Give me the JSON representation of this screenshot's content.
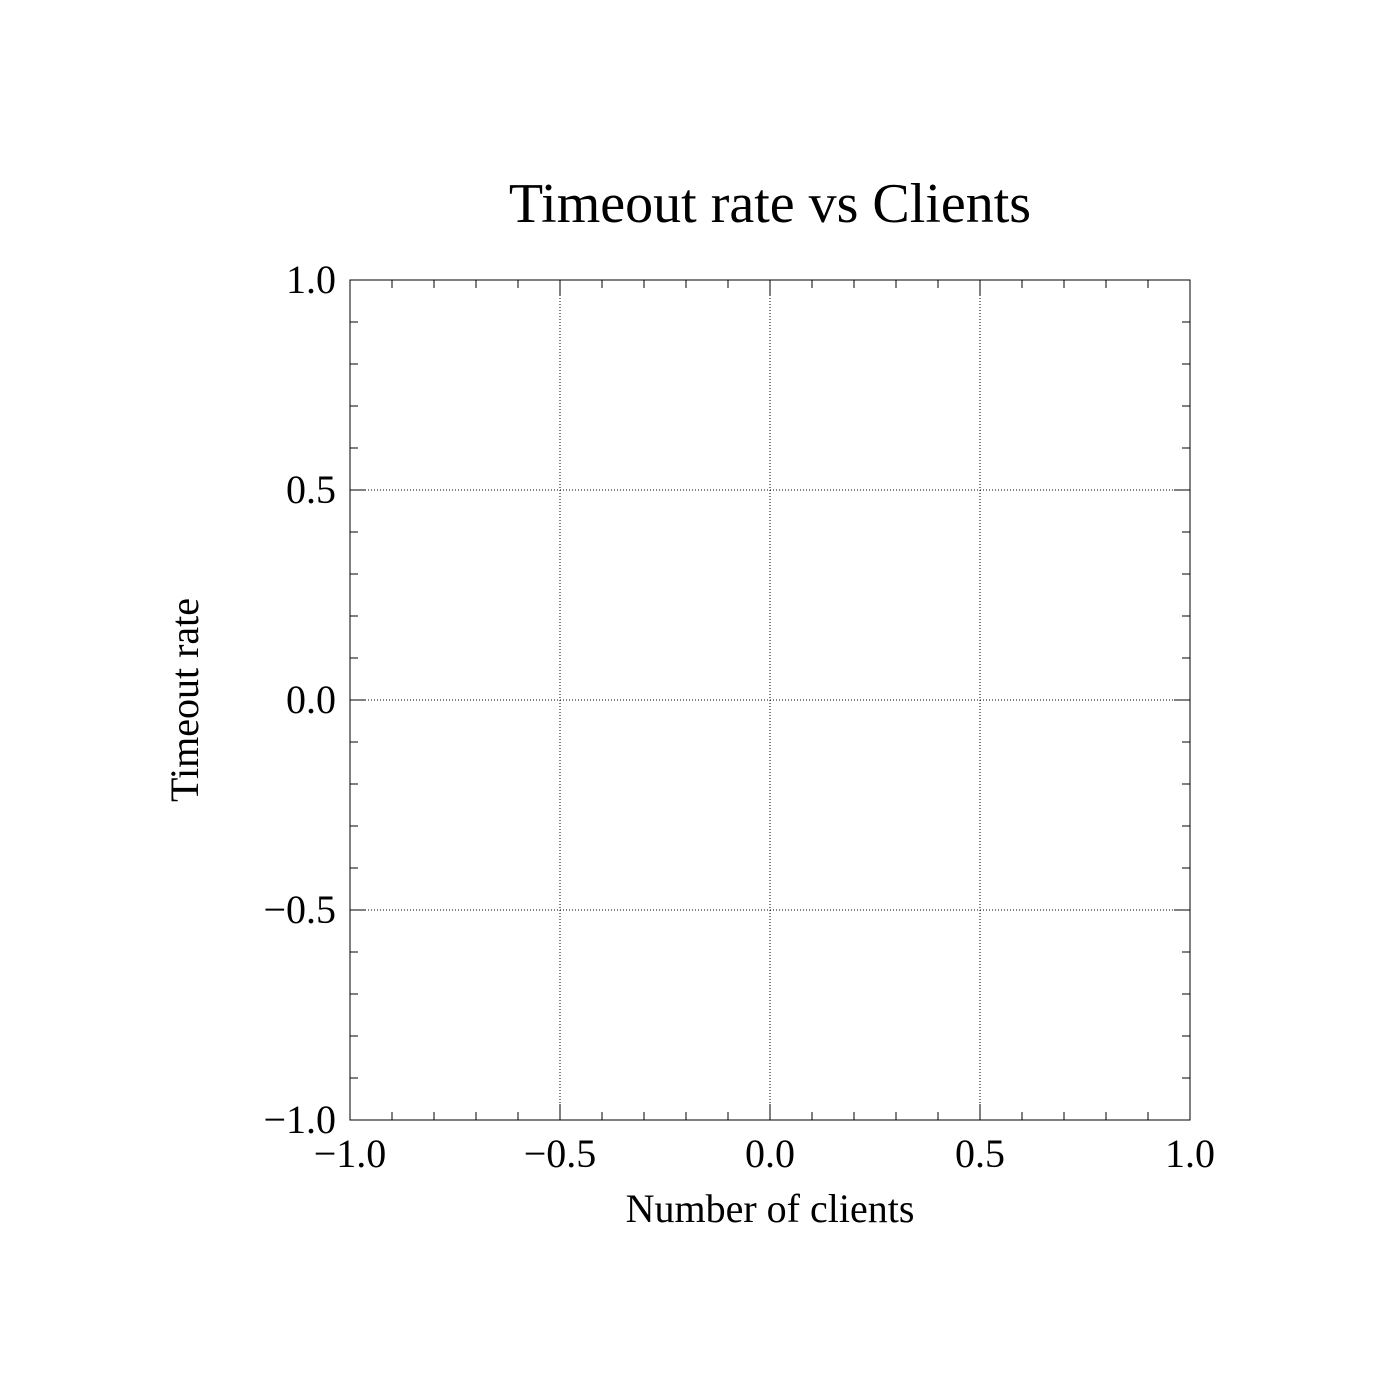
{
  "chart_data": {
    "type": "line",
    "title": "Timeout rate vs Clients",
    "xlabel": "Number of clients",
    "ylabel": "Timeout rate",
    "xlim": [
      -1.0,
      1.0
    ],
    "ylim": [
      -1.0,
      1.0
    ],
    "x_ticks": [
      -1.0,
      -0.5,
      0.0,
      0.5,
      1.0
    ],
    "y_ticks": [
      -1.0,
      -0.5,
      0.0,
      0.5,
      1.0
    ],
    "x_tick_labels": [
      "−1.0",
      "−0.5",
      "0.0",
      "0.5",
      "1.0"
    ],
    "y_tick_labels": [
      "−1.0",
      "−0.5",
      "0.0",
      "0.5",
      "1.0"
    ],
    "x_minor_step": 0.1,
    "y_minor_step": 0.1,
    "grid": true,
    "series": []
  }
}
